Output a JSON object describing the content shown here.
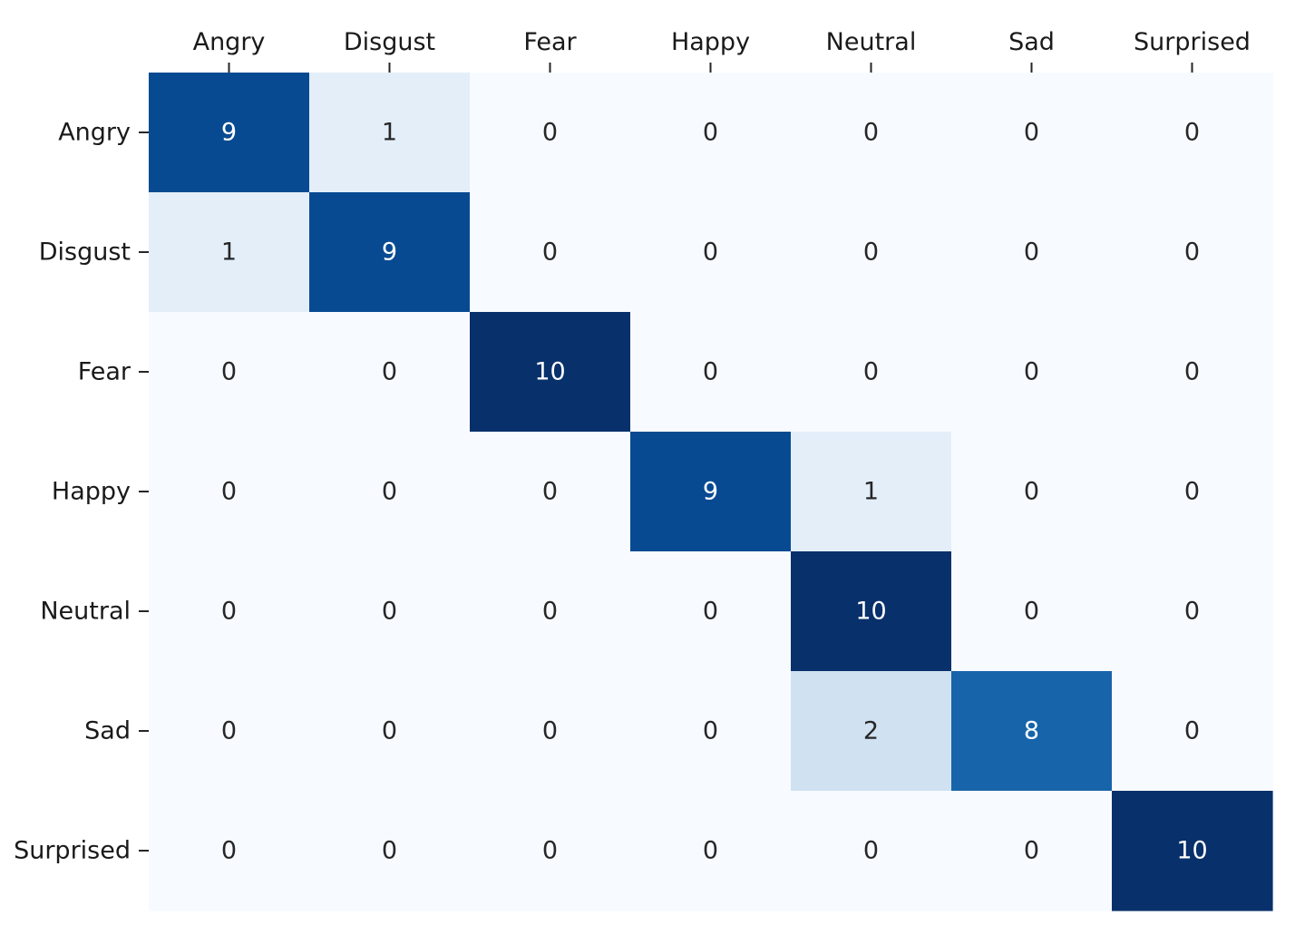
{
  "chart_data": {
    "type": "heatmap",
    "title": "",
    "xlabel": "",
    "ylabel": "",
    "x_categories": [
      "Angry",
      "Disgust",
      "Fear",
      "Happy",
      "Neutral",
      "Sad",
      "Surprised"
    ],
    "y_categories": [
      "Angry",
      "Disgust",
      "Fear",
      "Happy",
      "Neutral",
      "Sad",
      "Surprised"
    ],
    "values": [
      [
        9,
        1,
        0,
        0,
        0,
        0,
        0
      ],
      [
        1,
        9,
        0,
        0,
        0,
        0,
        0
      ],
      [
        0,
        0,
        10,
        0,
        0,
        0,
        0
      ],
      [
        0,
        0,
        0,
        9,
        1,
        0,
        0
      ],
      [
        0,
        0,
        0,
        0,
        10,
        0,
        0
      ],
      [
        0,
        0,
        0,
        0,
        2,
        8,
        0
      ],
      [
        0,
        0,
        0,
        0,
        0,
        0,
        10
      ]
    ],
    "value_range": [
      0,
      10
    ],
    "colormap": "Blues",
    "x_axis_position": "top",
    "annotated": true,
    "colorbar": false
  }
}
